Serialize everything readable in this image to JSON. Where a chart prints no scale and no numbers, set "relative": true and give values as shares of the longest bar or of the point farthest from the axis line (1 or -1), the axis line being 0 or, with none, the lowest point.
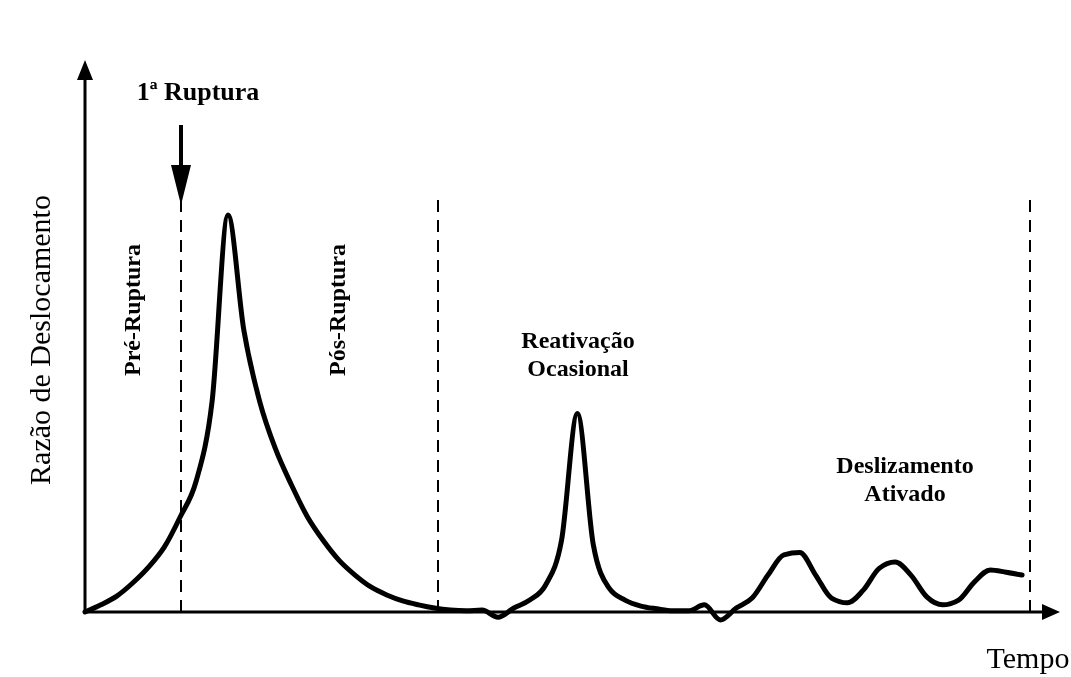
{
  "chart_data": {
    "type": "line",
    "relative": true,
    "xlabel": "Tempo",
    "ylabel": "Razão de Deslocamento",
    "categories": [
      null,
      null,
      null,
      null,
      null,
      null,
      null,
      null,
      null,
      null,
      null,
      null,
      null,
      null,
      null,
      null,
      null,
      null,
      null,
      null,
      null,
      null,
      null,
      null,
      null,
      null,
      null,
      null,
      null,
      null,
      null,
      null,
      null,
      null,
      null,
      null,
      null,
      null,
      null,
      null,
      null,
      null,
      null,
      null,
      null,
      null,
      null,
      null,
      null,
      null,
      null,
      null,
      null,
      null,
      null,
      null,
      null,
      null,
      null,
      null,
      null
    ],
    "series": [
      {
        "color": "#000000",
        "values": [
          0,
          0.018,
          0.04,
          0.073,
          0.113,
          0.164,
          0.24,
          0.33,
          0.53,
          1,
          0.71,
          0.53,
          0.41,
          0.32,
          0.24,
          0.18,
          0.13,
          0.093,
          0.063,
          0.043,
          0.028,
          0.018,
          0.01,
          0.005,
          0.003,
          0.005,
          -0.013,
          0.01,
          0.03,
          0.068,
          0.18,
          0.5,
          0.17,
          0.06,
          0.03,
          0.015,
          0.008,
          0.003,
          0.003,
          0.018,
          -0.02,
          0.01,
          0.035,
          0.093,
          0.144,
          0.15,
          0.093,
          0.035,
          0.023,
          0.055,
          0.11,
          0.126,
          0.093,
          0.038,
          0.018,
          0.03,
          0.076,
          0.106,
          0.1,
          0.093,
          null
        ]
      }
    ],
    "annotations": [
      "1ª Ruptura",
      "Pré-Ruptura",
      "Pós-Ruptura",
      "Reativação\nOcasional",
      "Deslizamento\nAtivado"
    ],
    "line_style": "solid",
    "marker": "none",
    "grid": false,
    "legend": false
  }
}
